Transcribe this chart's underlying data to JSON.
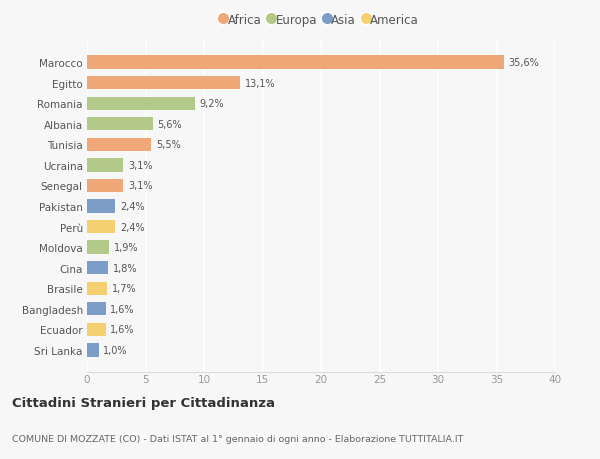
{
  "countries": [
    "Marocco",
    "Egitto",
    "Romania",
    "Albania",
    "Tunisia",
    "Ucraina",
    "Senegal",
    "Pakistan",
    "Perù",
    "Moldova",
    "Cina",
    "Brasile",
    "Bangladesh",
    "Ecuador",
    "Sri Lanka"
  ],
  "values": [
    35.6,
    13.1,
    9.2,
    5.6,
    5.5,
    3.1,
    3.1,
    2.4,
    2.4,
    1.9,
    1.8,
    1.7,
    1.6,
    1.6,
    1.0
  ],
  "labels": [
    "35,6%",
    "13,1%",
    "9,2%",
    "5,6%",
    "5,5%",
    "3,1%",
    "3,1%",
    "2,4%",
    "2,4%",
    "1,9%",
    "1,8%",
    "1,7%",
    "1,6%",
    "1,6%",
    "1,0%"
  ],
  "continents": [
    "Africa",
    "Africa",
    "Europa",
    "Europa",
    "Africa",
    "Europa",
    "Africa",
    "Asia",
    "America",
    "Europa",
    "Asia",
    "America",
    "Asia",
    "America",
    "Asia"
  ],
  "colors": {
    "Africa": "#F0A878",
    "Europa": "#B2C98A",
    "Asia": "#7B9DC7",
    "America": "#F5D070"
  },
  "legend_order": [
    "Africa",
    "Europa",
    "Asia",
    "America"
  ],
  "xlim": [
    0,
    40
  ],
  "xticks": [
    0,
    5,
    10,
    15,
    20,
    25,
    30,
    35,
    40
  ],
  "title": "Cittadini Stranieri per Cittadinanza",
  "subtitle": "COMUNE DI MOZZATE (CO) - Dati ISTAT al 1° gennaio di ogni anno - Elaborazione TUTTITALIA.IT",
  "bg_color": "#f7f7f7",
  "grid_color": "#ffffff",
  "bar_height": 0.65
}
